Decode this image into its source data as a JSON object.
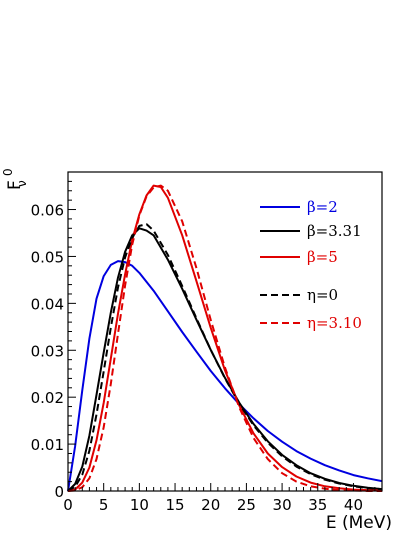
{
  "chart_data": {
    "type": "line",
    "title": "",
    "xlabel": "E (MeV)",
    "ylabel_main": "F",
    "ylabel_sub": "ν",
    "ylabel_sup": "0",
    "xlim": [
      0,
      44
    ],
    "ylim": [
      0,
      0.068
    ],
    "x_ticks": [
      0,
      5,
      10,
      15,
      20,
      25,
      30,
      35,
      40
    ],
    "x_tick_labels": [
      "0",
      "5",
      "10",
      "15",
      "20",
      "25",
      "30",
      "35",
      "40"
    ],
    "y_ticks": [
      0,
      0.01,
      0.02,
      0.03,
      0.04,
      0.05,
      0.06
    ],
    "y_tick_labels": [
      "0",
      "0.01",
      "0.02",
      "0.03",
      "0.04",
      "0.05",
      "0.06"
    ],
    "grid": false,
    "legend_position": "top-right",
    "series": [
      {
        "name": "β=2",
        "color": "#0000e0",
        "dash": "solid",
        "x": [
          0,
          1,
          2,
          3,
          4,
          5,
          6,
          7,
          8,
          9,
          10,
          12,
          14,
          16,
          18,
          20,
          22,
          24,
          26,
          28,
          30,
          32,
          34,
          36,
          38,
          40,
          42,
          44
        ],
        "y": [
          0,
          0.0095,
          0.0215,
          0.0325,
          0.041,
          0.0458,
          0.0482,
          0.049,
          0.0488,
          0.048,
          0.0465,
          0.0427,
          0.0383,
          0.0339,
          0.0297,
          0.0256,
          0.0219,
          0.0185,
          0.0155,
          0.0128,
          0.0105,
          0.0085,
          0.0069,
          0.0055,
          0.0044,
          0.0034,
          0.0027,
          0.0021
        ]
      },
      {
        "name": "β=3.31",
        "color": "#000000",
        "dash": "solid",
        "x": [
          0,
          1,
          2,
          3,
          4,
          5,
          6,
          7,
          8,
          9,
          10,
          11,
          12,
          14,
          16,
          18,
          20,
          22,
          24,
          26,
          28,
          30,
          32,
          34,
          36,
          38,
          40,
          42,
          44
        ],
        "y": [
          0,
          0.0015,
          0.0052,
          0.0118,
          0.0205,
          0.0295,
          0.038,
          0.0455,
          0.051,
          0.0545,
          0.056,
          0.0555,
          0.0545,
          0.0493,
          0.0431,
          0.0365,
          0.0301,
          0.0241,
          0.0188,
          0.0143,
          0.0106,
          0.0077,
          0.0055,
          0.0038,
          0.0026,
          0.0017,
          0.0011,
          0.0007,
          0.0004
        ]
      },
      {
        "name": "β=5",
        "color": "#e00000",
        "dash": "solid",
        "x": [
          0,
          1,
          2,
          3,
          4,
          5,
          6,
          7,
          8,
          9,
          10,
          11,
          12,
          13,
          14,
          16,
          18,
          20,
          22,
          24,
          26,
          28,
          30,
          32,
          34,
          36,
          38,
          40,
          42,
          44
        ],
        "y": [
          0,
          0.0003,
          0.0018,
          0.005,
          0.0108,
          0.0188,
          0.0282,
          0.0378,
          0.0462,
          0.0535,
          0.059,
          0.063,
          0.0651,
          0.0648,
          0.0625,
          0.0545,
          0.0447,
          0.0348,
          0.0257,
          0.0182,
          0.0123,
          0.008,
          0.0051,
          0.0031,
          0.0018,
          0.001,
          0.0006,
          0.0003,
          0.0002,
          0.0001
        ]
      },
      {
        "name": "η=0",
        "color": "#000000",
        "dash": "dashed",
        "x": [
          0,
          1,
          2,
          3,
          4,
          5,
          6,
          7,
          8,
          9,
          10,
          11,
          12,
          14,
          16,
          18,
          20,
          22,
          24,
          26,
          28,
          30,
          32,
          34,
          36,
          38,
          40,
          42,
          44
        ],
        "y": [
          0,
          0.0009,
          0.0035,
          0.0086,
          0.0163,
          0.0255,
          0.0348,
          0.0434,
          0.0498,
          0.054,
          0.0565,
          0.0569,
          0.0555,
          0.0503,
          0.0437,
          0.0368,
          0.0301,
          0.024,
          0.0186,
          0.014,
          0.0103,
          0.0074,
          0.0052,
          0.0036,
          0.0024,
          0.0016,
          0.001,
          0.0006,
          0.0004
        ]
      },
      {
        "name": "η=3.10",
        "color": "#e00000",
        "dash": "dashed",
        "x": [
          0,
          1,
          2,
          3,
          4,
          5,
          6,
          7,
          8,
          9,
          10,
          11,
          12,
          13,
          14,
          16,
          18,
          20,
          22,
          24,
          26,
          28,
          30,
          32,
          34,
          36,
          38,
          40,
          42,
          44
        ],
        "y": [
          0,
          0.0001,
          0.0008,
          0.0027,
          0.0068,
          0.0136,
          0.0228,
          0.0335,
          0.0438,
          0.0525,
          0.0588,
          0.0628,
          0.0647,
          0.0651,
          0.064,
          0.0575,
          0.0475,
          0.0365,
          0.0263,
          0.0178,
          0.0113,
          0.0068,
          0.0038,
          0.002,
          0.001,
          0.0005,
          0.0002,
          0.0001,
          0.0,
          0.0
        ]
      }
    ]
  }
}
